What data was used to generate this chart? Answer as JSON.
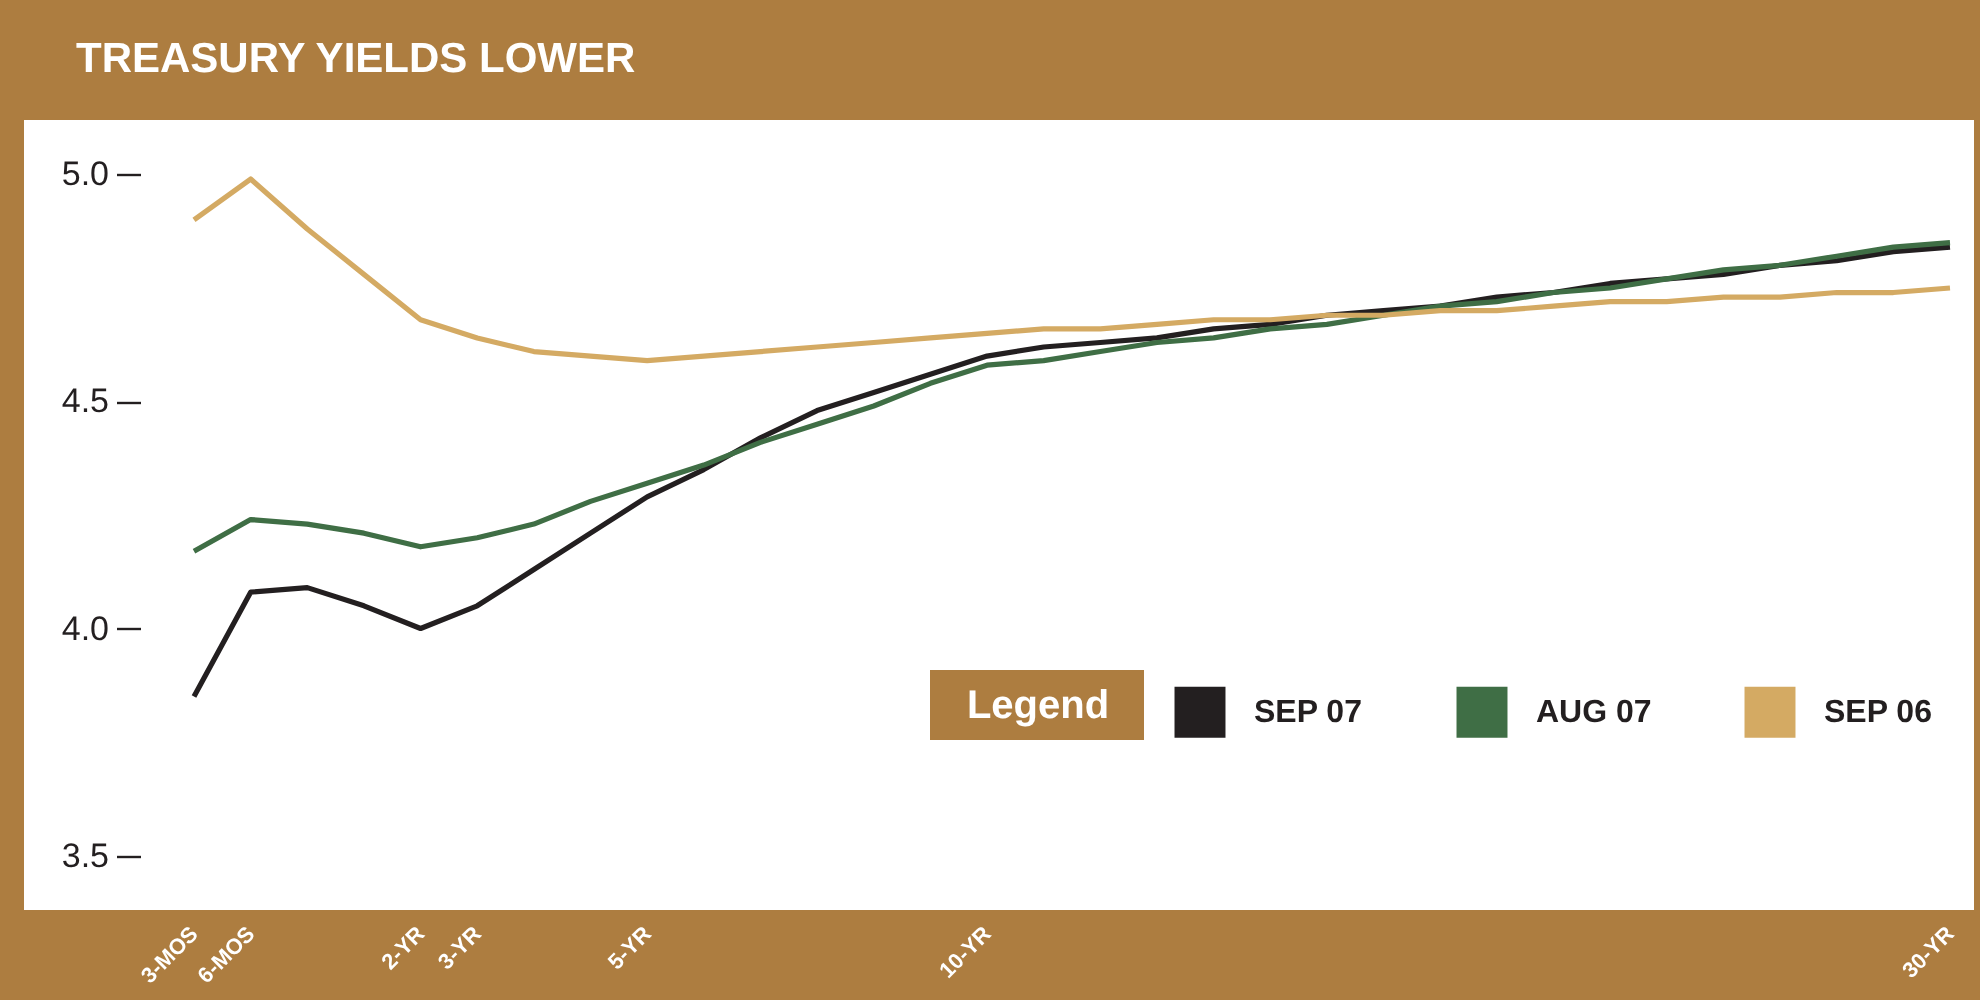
{
  "chart_data": {
    "type": "line",
    "title": "TREASURY YIELDS LOWER",
    "legend_title": "Legend",
    "legend": "bottom right",
    "grid": false,
    "marker": "none",
    "line_style": "solid",
    "categories": [
      "3-MOS",
      "6-MOS",
      null,
      null,
      "2-YR",
      "3-YR",
      null,
      null,
      "5-YR",
      null,
      null,
      null,
      null,
      null,
      "10-YR",
      null,
      null,
      null,
      null,
      null,
      null,
      null,
      null,
      null,
      null,
      null,
      null,
      null,
      null,
      null,
      null,
      "30-YR"
    ],
    "ylim": [
      3.38,
      5.12
    ],
    "yticks": [
      {
        "value": 3.5,
        "label": "3.5"
      },
      {
        "value": 4.0,
        "label": "4.0"
      },
      {
        "value": 4.5,
        "label": "4.5"
      },
      {
        "value": 5.0,
        "label": "5.0"
      }
    ],
    "series": [
      {
        "name": "SEP 07",
        "color": "#231f20",
        "values": [
          3.85,
          4.08,
          4.09,
          4.05,
          4.0,
          4.05,
          4.13,
          4.21,
          4.29,
          4.35,
          4.42,
          4.48,
          4.52,
          4.56,
          4.6,
          4.62,
          4.63,
          4.64,
          4.66,
          4.67,
          4.69,
          4.7,
          4.71,
          4.73,
          4.74,
          4.76,
          4.77,
          4.78,
          4.8,
          4.81,
          4.83,
          4.84
        ]
      },
      {
        "name": "AUG 07",
        "color": "#3f6e45",
        "values": [
          4.17,
          4.24,
          4.23,
          4.21,
          4.18,
          4.2,
          4.23,
          4.28,
          4.32,
          4.36,
          4.41,
          4.45,
          4.49,
          4.54,
          4.58,
          4.59,
          4.61,
          4.63,
          4.64,
          4.66,
          4.67,
          4.69,
          4.71,
          4.72,
          4.74,
          4.75,
          4.77,
          4.79,
          4.8,
          4.82,
          4.84,
          4.85
        ]
      },
      {
        "name": "SEP 06",
        "color": "#d4aa63",
        "values": [
          4.9,
          4.99,
          4.88,
          4.78,
          4.68,
          4.64,
          4.61,
          4.6,
          4.59,
          4.6,
          4.61,
          4.62,
          4.63,
          4.64,
          4.65,
          4.66,
          4.66,
          4.67,
          4.68,
          4.68,
          4.69,
          4.69,
          4.7,
          4.7,
          4.71,
          4.72,
          4.72,
          4.73,
          4.73,
          4.74,
          4.74,
          4.75
        ]
      }
    ]
  }
}
